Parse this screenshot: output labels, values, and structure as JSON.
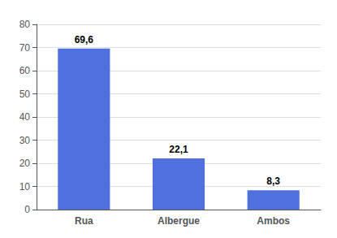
{
  "chart_data": {
    "type": "bar",
    "categories": [
      "Rua",
      "Albergue",
      "Ambos"
    ],
    "values": [
      69.6,
      22.1,
      8.3
    ],
    "value_labels": [
      "69,6",
      "22,1",
      "8,3"
    ],
    "data_labels": true,
    "ylim": [
      0,
      80
    ],
    "yticks": [
      0,
      10,
      20,
      30,
      40,
      50,
      60,
      70,
      80
    ],
    "grid": true
  }
}
